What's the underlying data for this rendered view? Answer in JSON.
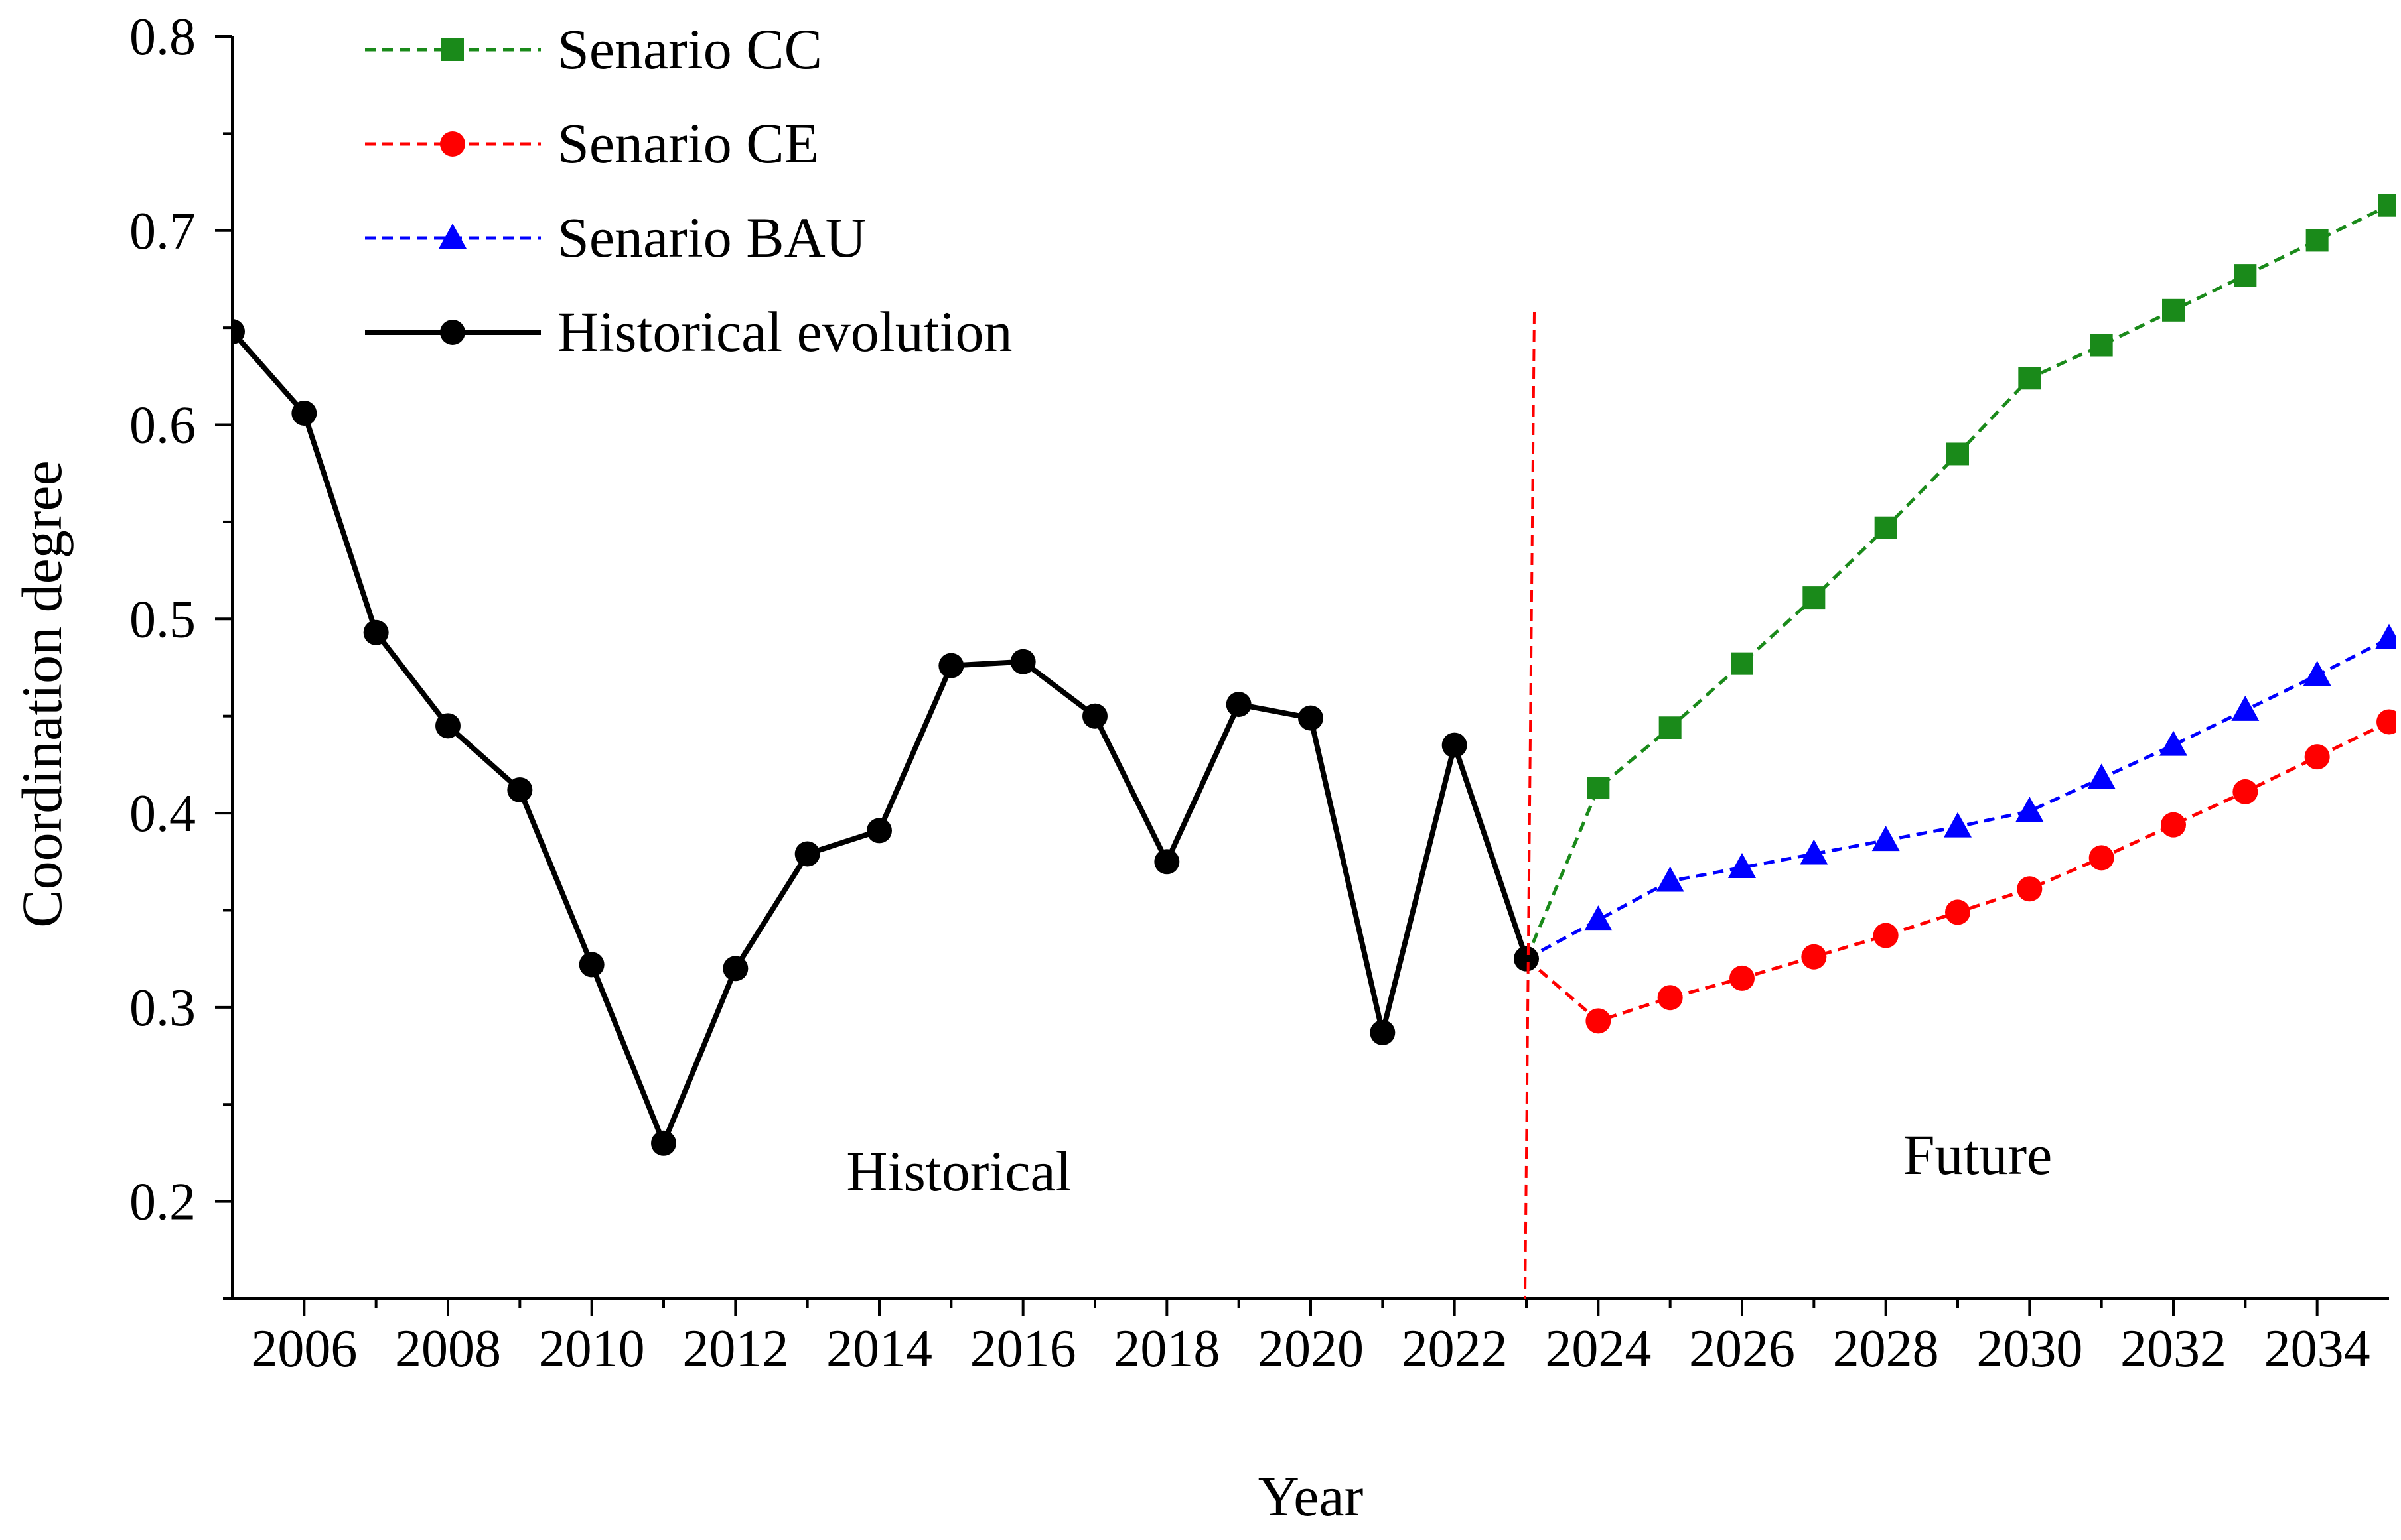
{
  "chart_data": {
    "type": "line",
    "xlabel": "Year",
    "ylabel": "Coordination degree",
    "xlim": [
      2005,
      2035
    ],
    "ylim": [
      0.15,
      0.8
    ],
    "y_ticks": [
      0.2,
      0.3,
      0.4,
      0.5,
      0.6,
      0.7,
      0.8
    ],
    "y_tick_labels": [
      "0.2",
      "0.3",
      "0.4",
      "0.5",
      "0.6",
      "0.7",
      "0.8"
    ],
    "x_ticks": [
      2006,
      2008,
      2010,
      2012,
      2014,
      2016,
      2018,
      2020,
      2022,
      2024,
      2026,
      2028,
      2030,
      2032,
      2034
    ],
    "x_tick_labels": [
      "2006",
      "2008",
      "2010",
      "2012",
      "2014",
      "2016",
      "2018",
      "2020",
      "2022",
      "2024",
      "2026",
      "2028",
      "2030",
      "2032",
      "2034"
    ],
    "divider_year": 2023,
    "annotations": {
      "historical": "Historical",
      "future": "Future"
    },
    "legend_position": "top-left",
    "series": [
      {
        "name": "Senario CC",
        "color": "#1a8a1a",
        "marker": "square",
        "dash": true,
        "x": [
          2023,
          2024,
          2025,
          2026,
          2027,
          2028,
          2029,
          2030,
          2031,
          2032,
          2033,
          2034,
          2035
        ],
        "values": [
          0.325,
          0.413,
          0.444,
          0.477,
          0.511,
          0.547,
          0.585,
          0.624,
          0.641,
          0.659,
          0.677,
          0.695,
          0.713
        ]
      },
      {
        "name": "Senario CE",
        "color": "#ff0000",
        "marker": "circle",
        "dash": true,
        "x": [
          2023,
          2024,
          2025,
          2026,
          2027,
          2028,
          2029,
          2030,
          2031,
          2032,
          2033,
          2034,
          2035
        ],
        "values": [
          0.325,
          0.293,
          0.305,
          0.315,
          0.326,
          0.337,
          0.349,
          0.361,
          0.377,
          0.394,
          0.411,
          0.429,
          0.447
        ]
      },
      {
        "name": "Senario BAU",
        "color": "#0000ff",
        "marker": "triangle",
        "dash": true,
        "x": [
          2023,
          2024,
          2025,
          2026,
          2027,
          2028,
          2029,
          2030,
          2031,
          2032,
          2033,
          2034,
          2035
        ],
        "values": [
          0.325,
          0.345,
          0.365,
          0.372,
          0.379,
          0.386,
          0.393,
          0.401,
          0.418,
          0.435,
          0.453,
          0.471,
          0.49
        ]
      },
      {
        "name": "Historical evolution",
        "color": "#000000",
        "marker": "circle",
        "dash": false,
        "x": [
          2005,
          2006,
          2007,
          2008,
          2009,
          2010,
          2011,
          2012,
          2013,
          2014,
          2015,
          2016,
          2017,
          2018,
          2019,
          2020,
          2021,
          2022,
          2023
        ],
        "values": [
          0.648,
          0.606,
          0.493,
          0.445,
          0.412,
          0.322,
          0.23,
          0.32,
          0.379,
          0.391,
          0.476,
          0.478,
          0.45,
          0.375,
          0.456,
          0.449,
          0.287,
          0.435,
          0.325
        ]
      }
    ]
  }
}
